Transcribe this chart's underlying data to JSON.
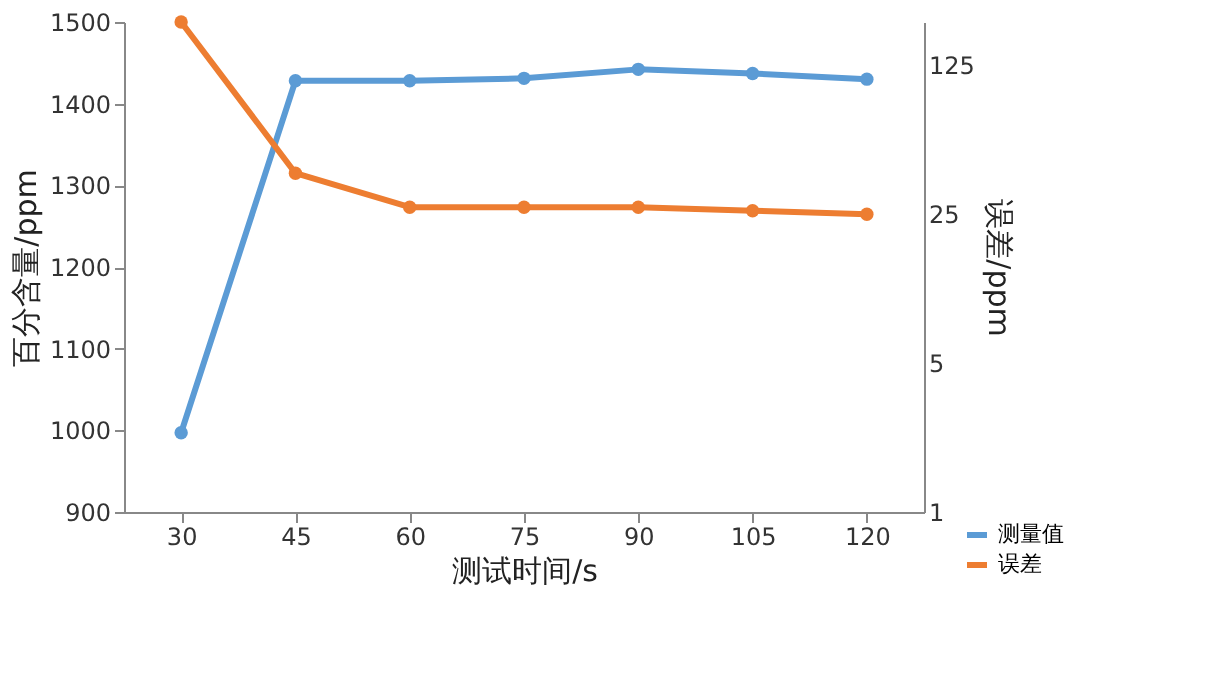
{
  "chart_data": {
    "type": "line",
    "xlabel": "测试时间/s",
    "ylabel": "百分含量/ppm",
    "y2label": "误差/ppm",
    "categories": [
      "30",
      "45",
      "60",
      "75",
      "90",
      "105",
      "120"
    ],
    "series": [
      {
        "name": "测量值",
        "color": "#5b9bd5",
        "values": [
          997,
          1428,
          1428,
          1431,
          1442,
          1437,
          1430
        ]
      },
      {
        "name": "误差",
        "color": "#ed7d31",
        "axis": "y2",
        "values": [
          200,
          39,
          27,
          27,
          27,
          26,
          25
        ]
      }
    ],
    "ylim": [
      900,
      1500
    ],
    "yticks": [
      900,
      1000,
      1100,
      1200,
      1300,
      1400,
      1500
    ],
    "y2lim": [
      1,
      200
    ],
    "y2ticks": [
      1,
      5,
      25,
      125
    ],
    "log": "y2",
    "marker": "circle",
    "line_style": "solid",
    "grid": false,
    "legend": "bottom right"
  }
}
